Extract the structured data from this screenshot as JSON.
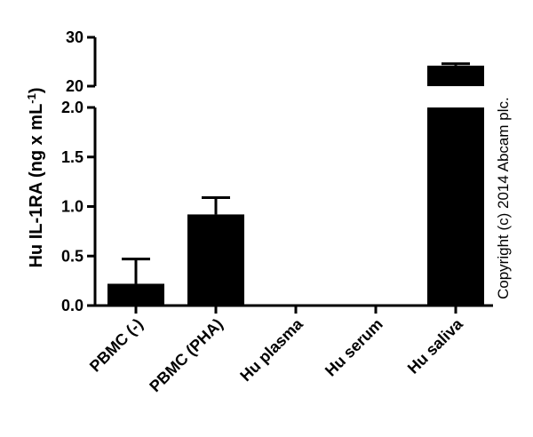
{
  "chart_data": {
    "type": "bar",
    "title": "",
    "ylabel": "Hu IL-1RA (ng x mL",
    "ylabel_sup": "-1",
    "ylabel_close": ")",
    "xlabel": "",
    "categories": [
      "PBMC (-)",
      "PBMC (PHA)",
      "Hu plasma",
      "Hu serum",
      "Hu saliva"
    ],
    "values": [
      0.22,
      0.92,
      0,
      0,
      24.2
    ],
    "errors": [
      0.25,
      0.17,
      0,
      0,
      0.4
    ],
    "axis_break": {
      "lower_range": [
        0,
        2.0
      ],
      "upper_range": [
        20,
        30
      ]
    },
    "y_ticks_lower": [
      "0.0",
      "0.5",
      "1.0",
      "1.5",
      "2.0"
    ],
    "y_ticks_upper": [
      "20",
      "30"
    ],
    "bar_color": "#000000",
    "grid": false,
    "legend": "none",
    "annotation": "Copyright (c) 2014 Abcam plc."
  }
}
